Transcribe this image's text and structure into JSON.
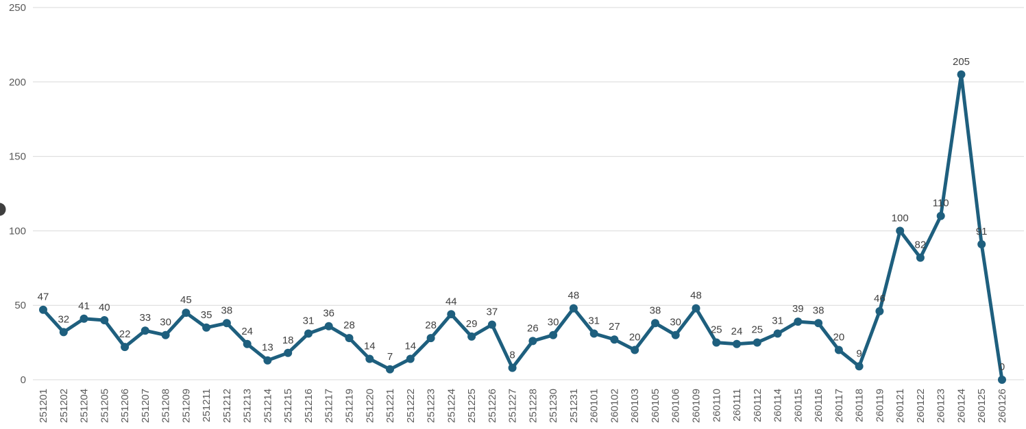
{
  "chart_data": {
    "type": "line",
    "title": "",
    "xlabel": "",
    "ylabel": "",
    "categories": [
      "251201",
      "251202",
      "251204",
      "251205",
      "251206",
      "251207",
      "251208",
      "251209",
      "251211",
      "251212",
      "251213",
      "251214",
      "251215",
      "251216",
      "251217",
      "251219",
      "251220",
      "251221",
      "251222",
      "251223",
      "251224",
      "251225",
      "251226",
      "251227",
      "251228",
      "251230",
      "251231",
      "260101",
      "260102",
      "260103",
      "260105",
      "260106",
      "260109",
      "260110",
      "260111",
      "260112",
      "260114",
      "260115",
      "260116",
      "260117",
      "260118",
      "260119",
      "260121",
      "260122",
      "260123",
      "260124",
      "260125",
      "260126"
    ],
    "values": [
      47,
      32,
      41,
      40,
      22,
      33,
      30,
      45,
      35,
      38,
      24,
      13,
      18,
      31,
      36,
      28,
      14,
      7,
      14,
      28,
      44,
      29,
      37,
      8,
      26,
      30,
      48,
      31,
      27,
      20,
      38,
      30,
      48,
      25,
      24,
      25,
      31,
      39,
      38,
      20,
      9,
      46,
      100,
      82,
      110,
      205,
      91,
      0
    ],
    "ylim": [
      0,
      250
    ],
    "yticks": [
      0,
      50,
      100,
      150,
      200,
      250
    ],
    "grid": true,
    "legend": "none",
    "data_labels": true,
    "x_tick_rotation": -90,
    "marker": "circle"
  },
  "colors": {
    "line": "#1E5F7E",
    "marker": "#1E5F7E",
    "data_label": "#404040",
    "axis_label": "#595959",
    "gridline": "#D9D9D9",
    "background": "#FFFFFF",
    "edge_artifact": "#3F3F3F"
  }
}
